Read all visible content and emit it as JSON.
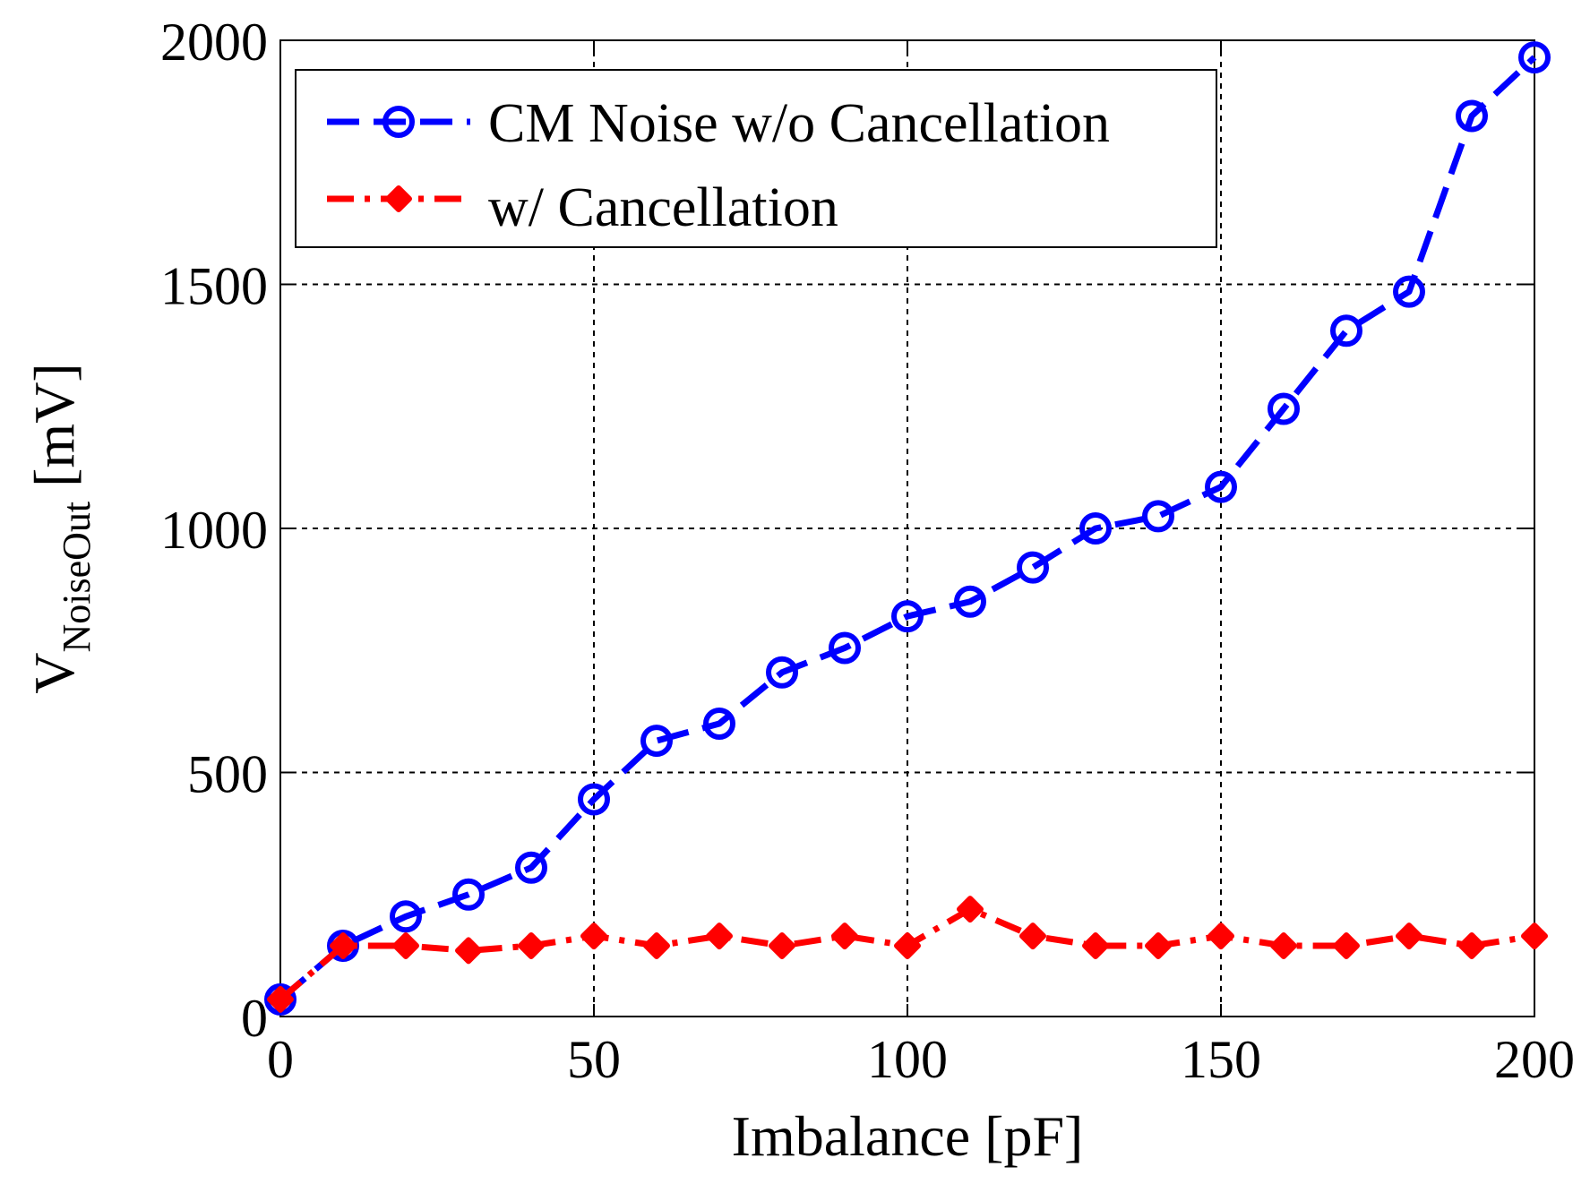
{
  "chart_data": {
    "type": "line",
    "title": "",
    "xlabel": "Imbalance [pF]",
    "ylabel": {
      "main": "V",
      "subscript": "NoiseOut",
      "unit": " [mV]"
    },
    "xlim": [
      0,
      200
    ],
    "ylim": [
      0,
      2000
    ],
    "xticks": [
      0,
      50,
      100,
      150,
      200
    ],
    "yticks": [
      0,
      500,
      1000,
      1500,
      2000
    ],
    "xtick_labels": [
      "0",
      "50",
      "100",
      "150",
      "200"
    ],
    "ytick_labels": [
      "0",
      "500",
      "1000",
      "1500",
      "2000"
    ],
    "grid": true,
    "legend_position": "top-left",
    "x": [
      0,
      10,
      20,
      30,
      40,
      50,
      60,
      70,
      80,
      90,
      100,
      110,
      120,
      130,
      140,
      150,
      160,
      170,
      180,
      190,
      200
    ],
    "series": [
      {
        "name": "CM Noise w/o Cancellation",
        "color": "#0000ff",
        "line_style": "dashed",
        "marker": "circle",
        "values": [
          35,
          145,
          205,
          250,
          305,
          445,
          565,
          600,
          705,
          755,
          820,
          850,
          920,
          1000,
          1025,
          1085,
          1245,
          1405,
          1485,
          1845,
          1965
        ]
      },
      {
        "name": "w/ Cancellation",
        "color": "#ff0000",
        "line_style": "dash-dot",
        "marker": "diamond",
        "values": [
          35,
          145,
          145,
          135,
          145,
          165,
          145,
          165,
          145,
          165,
          145,
          220,
          165,
          145,
          145,
          165,
          145,
          145,
          165,
          145,
          165
        ]
      }
    ]
  }
}
